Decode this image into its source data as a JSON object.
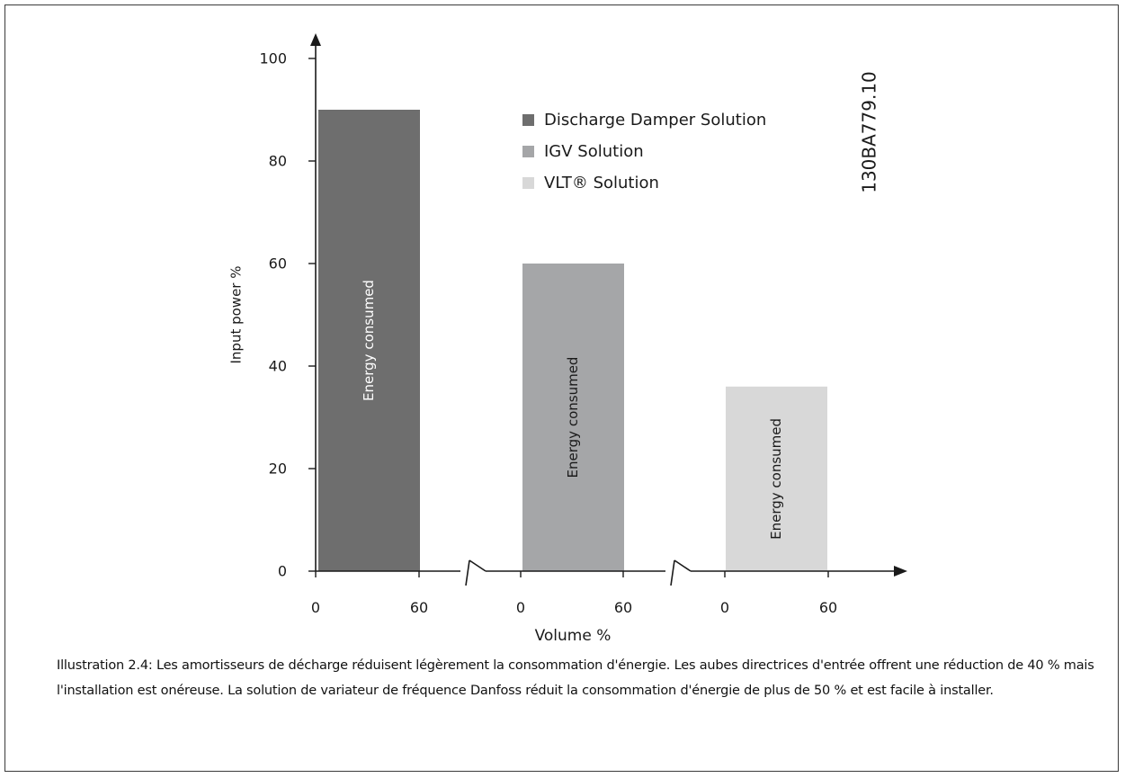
{
  "chart_data": {
    "type": "bar",
    "ylabel": "Input power %",
    "xlabel": "Volume %",
    "ylim": [
      0,
      100
    ],
    "y_ticks": [
      0,
      20,
      40,
      60,
      80,
      100
    ],
    "legend_position": "top-right",
    "series": [
      {
        "name": "Discharge Damper Solution",
        "value": 90,
        "x_ticks": [
          "0",
          "60"
        ],
        "bar_label": "Energy consumed",
        "color": "#6e6e6e"
      },
      {
        "name": "IGV Solution",
        "value": 60,
        "x_ticks": [
          "0",
          "60"
        ],
        "bar_label": "Energy consumed",
        "color": "#a5a6a8"
      },
      {
        "name": "VLT® Solution",
        "value": 36,
        "x_ticks": [
          "0",
          "60"
        ],
        "bar_label": "Energy consumed",
        "color": "#d8d8d8"
      }
    ],
    "reference_code": "130BA779.10"
  },
  "caption": "Illustration 2.4: Les amortisseurs de décharge réduisent légèrement la consommation d'énergie. Les aubes directrices d'entrée offrent une réduction de 40 % mais l'installation est onéreuse. La solution de variateur de fréquence Danfoss réduit la consommation d'énergie de plus de 50 % et est facile à installer."
}
